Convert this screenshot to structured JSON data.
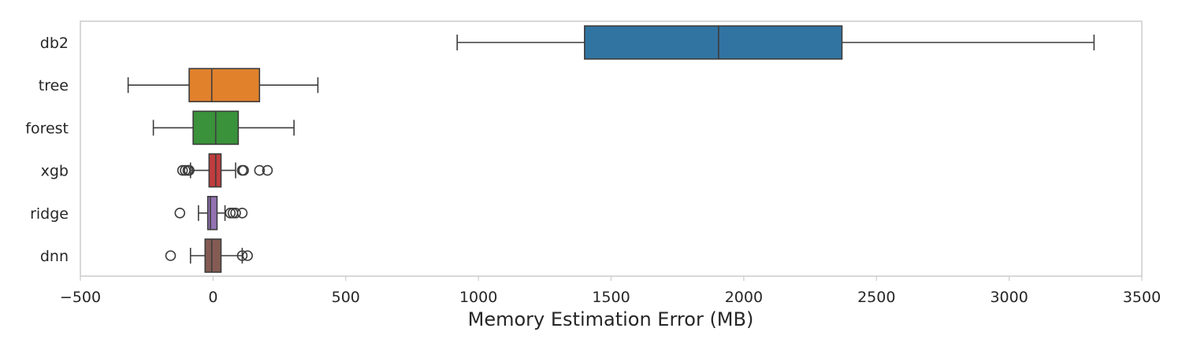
{
  "chart_data": {
    "type": "boxplot",
    "orientation": "horizontal",
    "xlabel": "Memory Estimation Error (MB)",
    "ylabel": "",
    "xlim": [
      -500,
      3500
    ],
    "xticks": [
      -500,
      0,
      500,
      1000,
      1500,
      2000,
      2500,
      3000,
      3500
    ],
    "xtick_labels": [
      "−500",
      "0",
      "500",
      "1000",
      "1500",
      "2000",
      "2500",
      "3000",
      "3500"
    ],
    "grid": false,
    "categories": [
      "db2",
      "tree",
      "forest",
      "xgb",
      "ridge",
      "dnn"
    ],
    "series": [
      {
        "category": "db2",
        "color": "#3274a1",
        "whisker_low": 920,
        "q1": 1400,
        "median": 1905,
        "q3": 2370,
        "whisker_high": 3320,
        "outliers": []
      },
      {
        "category": "tree",
        "color": "#e1812c",
        "whisker_low": -320,
        "q1": -90,
        "median": -5,
        "q3": 175,
        "whisker_high": 395,
        "outliers": []
      },
      {
        "category": "forest",
        "color": "#3a923a",
        "whisker_low": -225,
        "q1": -75,
        "median": 10,
        "q3": 95,
        "whisker_high": 305,
        "outliers": []
      },
      {
        "category": "xgb",
        "color": "#c03d3e",
        "whisker_low": -85,
        "q1": -15,
        "median": 10,
        "q3": 30,
        "whisker_high": 85,
        "outliers": [
          -115,
          -105,
          -95,
          -90,
          110,
          115,
          175,
          205
        ]
      },
      {
        "category": "ridge",
        "color": "#9372b2",
        "whisker_low": -55,
        "q1": -20,
        "median": -10,
        "q3": 15,
        "whisker_high": 45,
        "outliers": [
          -125,
          65,
          75,
          85,
          110
        ]
      },
      {
        "category": "dnn",
        "color": "#845b53",
        "whisker_low": -85,
        "q1": -30,
        "median": -5,
        "q3": 30,
        "whisker_high": 110,
        "outliers": [
          -160,
          110,
          130
        ]
      }
    ]
  }
}
